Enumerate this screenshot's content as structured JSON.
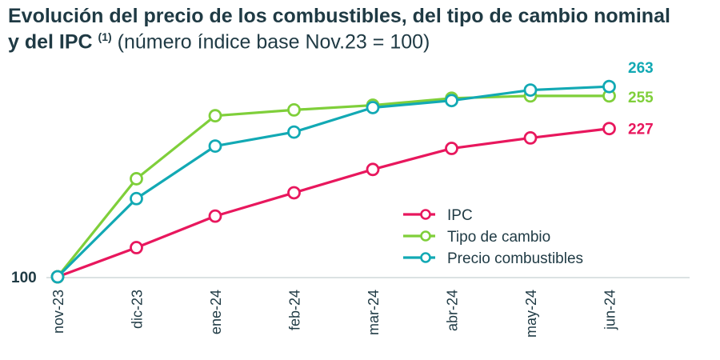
{
  "chart_data": {
    "type": "line",
    "title_bold_1": "Evolución del precio de los combustibles, del tipo de cambio nominal",
    "title_bold_2": "y del IPC",
    "title_sup": "(1)",
    "title_rest": "(número índice base Nov.23 = 100)",
    "categories": [
      "nov-23",
      "dic-23",
      "ene-24",
      "feb-24",
      "mar-24",
      "abr-24",
      "may-24",
      "jun-24"
    ],
    "ytick_label": "100",
    "ybase": 100,
    "ylim": [
      100,
      270
    ],
    "series": [
      {
        "name": "IPC",
        "color": "#e8175d",
        "values": [
          100,
          125,
          152,
          172,
          192,
          210,
          219,
          227
        ],
        "end_label": "227"
      },
      {
        "name": "Tipo de cambio",
        "color": "#7fcf3a",
        "values": [
          100,
          184,
          238,
          243,
          247,
          253,
          255,
          255
        ],
        "end_label": "255"
      },
      {
        "name": "Precio combustibles",
        "color": "#12a9b4",
        "values": [
          100,
          167,
          212,
          224,
          245,
          251,
          260,
          263
        ],
        "end_label": "263"
      }
    ],
    "legend_position": "inside-right",
    "grid": false
  }
}
